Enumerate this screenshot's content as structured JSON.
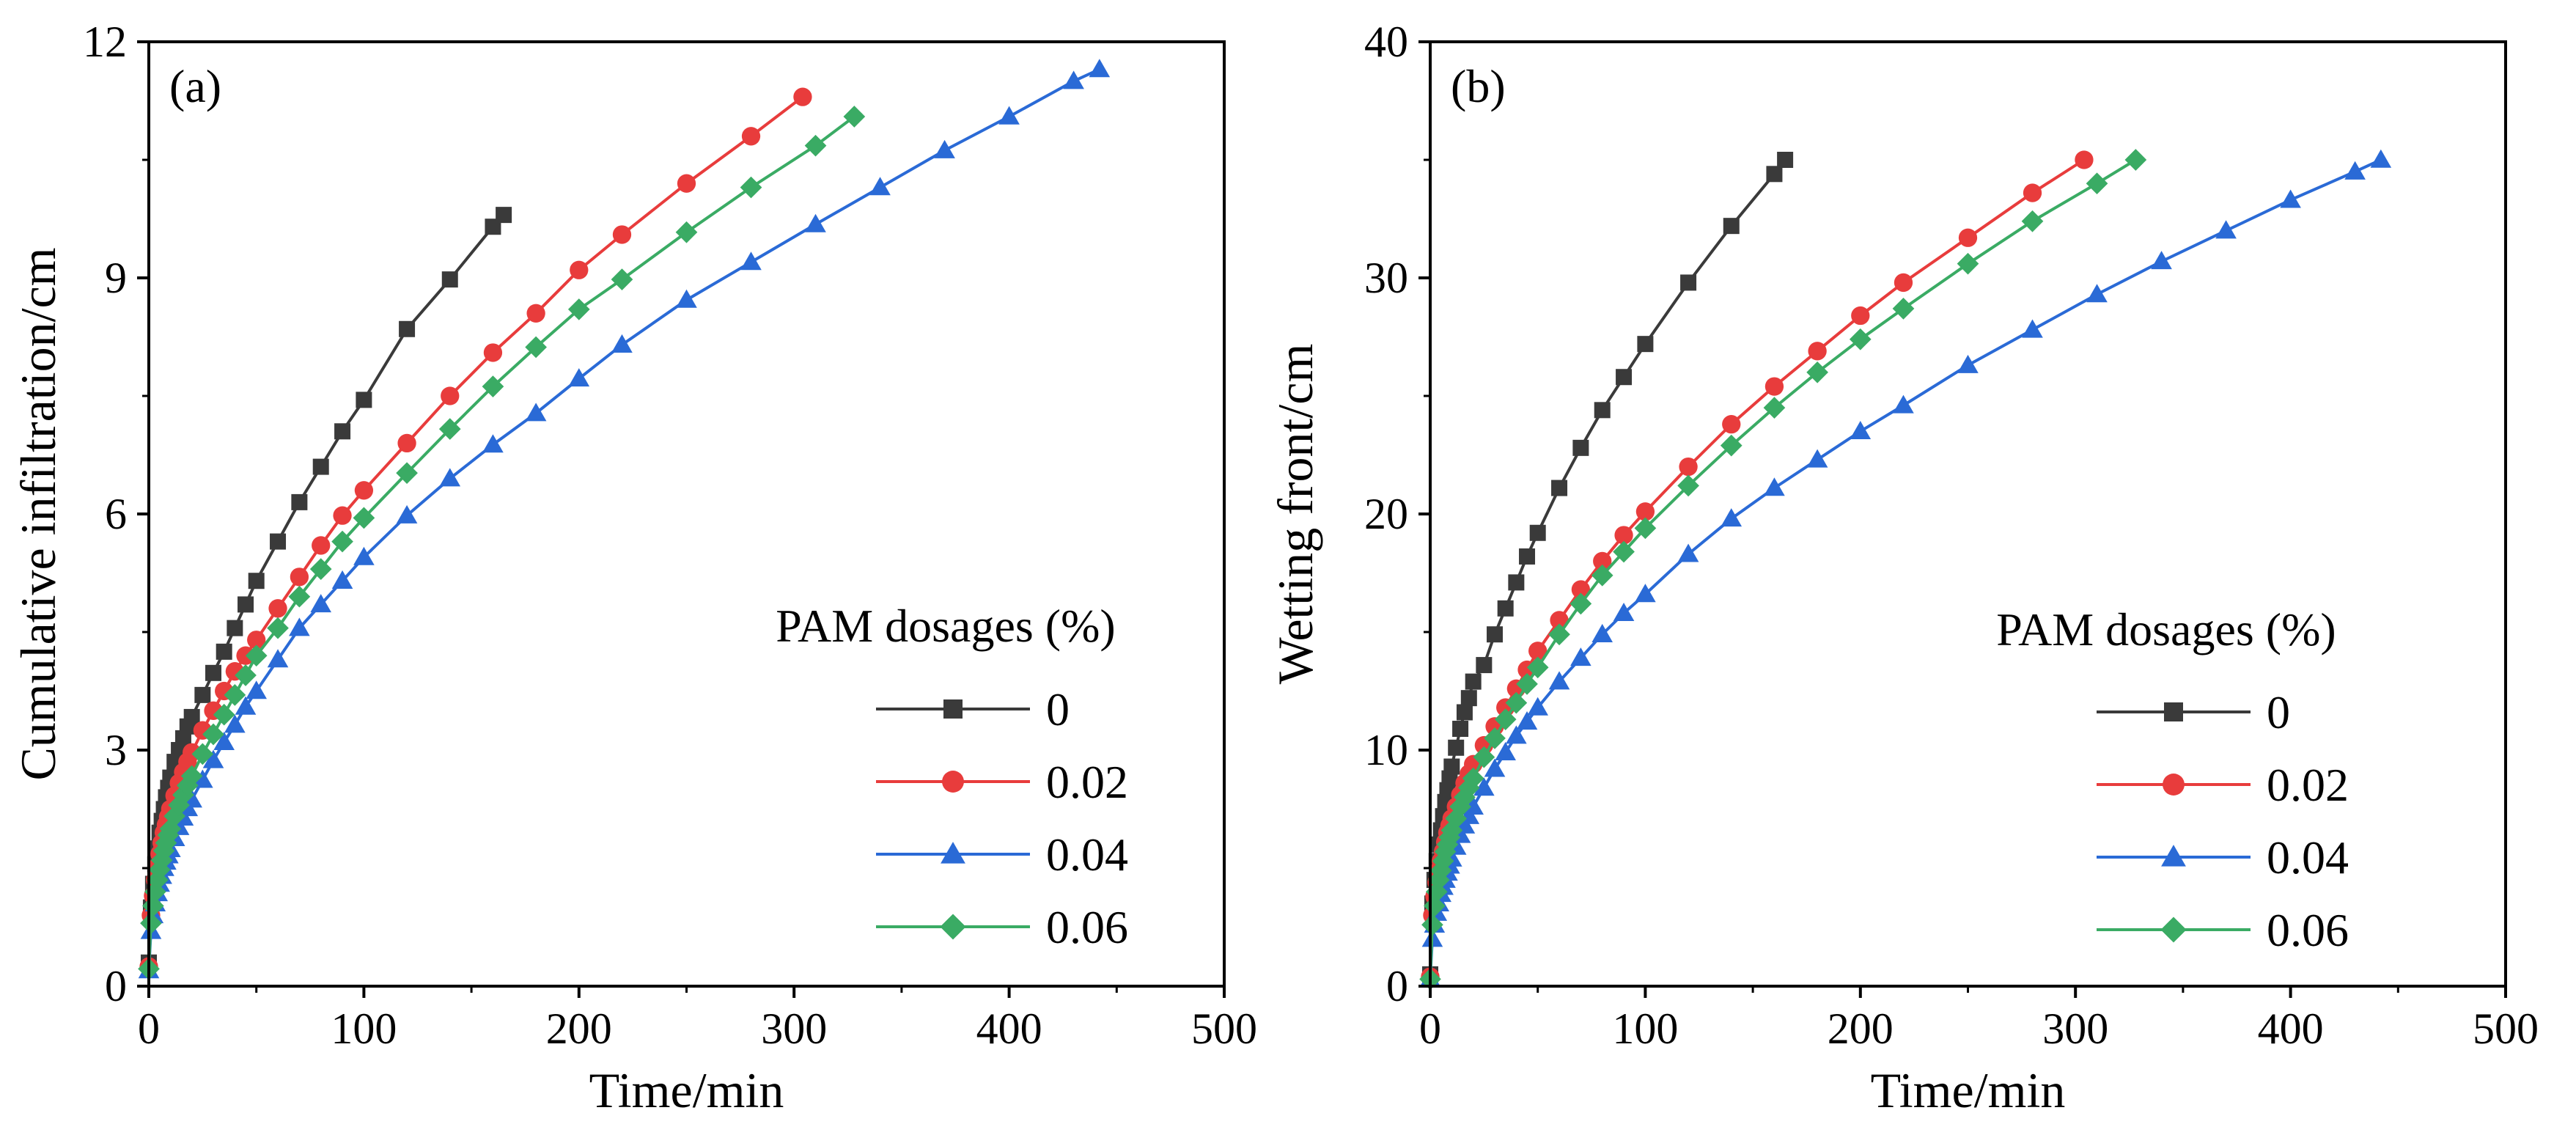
{
  "chart_data": [
    {
      "type": "line",
      "panel_label": "(a)",
      "xlabel": "Time/min",
      "ylabel": "Cumulative infiltration/cm",
      "xlim": [
        0,
        500
      ],
      "ylim": [
        0,
        12
      ],
      "xticks": [
        0,
        100,
        200,
        300,
        400,
        500
      ],
      "yticks": [
        0,
        3,
        6,
        9,
        12
      ],
      "legend_title": "PAM dosages (%)",
      "legend_position": "lower-right",
      "series": [
        {
          "name": "0",
          "color": "#3a3a3a",
          "marker": "square",
          "x": [
            0,
            1,
            2,
            3,
            4,
            5,
            6,
            7,
            8,
            9,
            10,
            12,
            14,
            16,
            18,
            20,
            25,
            30,
            35,
            40,
            45,
            50,
            60,
            70,
            80,
            90,
            100,
            120,
            140,
            160,
            165
          ],
          "y": [
            0.3,
            1.0,
            1.3,
            1.55,
            1.75,
            1.95,
            2.1,
            2.25,
            2.4,
            2.52,
            2.65,
            2.85,
            3.0,
            3.15,
            3.3,
            3.42,
            3.7,
            3.98,
            4.25,
            4.55,
            4.85,
            5.15,
            5.65,
            6.15,
            6.6,
            7.05,
            7.45,
            8.35,
            8.98,
            9.65,
            9.8
          ]
        },
        {
          "name": "0.02",
          "color": "#e83c3c",
          "marker": "circle",
          "x": [
            0,
            1,
            2,
            3,
            4,
            5,
            6,
            7,
            8,
            9,
            10,
            12,
            14,
            16,
            18,
            20,
            25,
            30,
            35,
            40,
            45,
            50,
            60,
            70,
            80,
            90,
            100,
            120,
            140,
            160,
            180,
            200,
            220,
            250,
            280,
            304
          ],
          "y": [
            0.25,
            0.9,
            1.15,
            1.35,
            1.52,
            1.68,
            1.82,
            1.95,
            2.05,
            2.15,
            2.25,
            2.42,
            2.58,
            2.72,
            2.85,
            2.97,
            3.25,
            3.5,
            3.75,
            4.0,
            4.2,
            4.4,
            4.8,
            5.2,
            5.6,
            5.98,
            6.3,
            6.9,
            7.5,
            8.05,
            8.55,
            9.1,
            9.55,
            10.2,
            10.8,
            11.3
          ]
        },
        {
          "name": "0.04",
          "color": "#2a6ad6",
          "marker": "triangle",
          "x": [
            0,
            1,
            2,
            3,
            4,
            5,
            6,
            7,
            8,
            9,
            10,
            12,
            14,
            16,
            18,
            20,
            25,
            30,
            35,
            40,
            45,
            50,
            60,
            70,
            80,
            90,
            100,
            120,
            140,
            160,
            180,
            200,
            220,
            250,
            280,
            310,
            340,
            370,
            400,
            430,
            442
          ],
          "y": [
            0.2,
            0.7,
            0.9,
            1.05,
            1.18,
            1.3,
            1.4,
            1.5,
            1.58,
            1.66,
            1.74,
            1.88,
            2.02,
            2.14,
            2.26,
            2.37,
            2.62,
            2.87,
            3.1,
            3.32,
            3.55,
            3.75,
            4.15,
            4.55,
            4.85,
            5.15,
            5.45,
            5.98,
            6.45,
            6.88,
            7.28,
            7.72,
            8.15,
            8.72,
            9.2,
            9.68,
            10.15,
            10.62,
            11.05,
            11.5,
            11.65
          ]
        },
        {
          "name": "0.06",
          "color": "#3aab64",
          "marker": "diamond",
          "x": [
            0,
            1,
            2,
            3,
            4,
            5,
            6,
            7,
            8,
            9,
            10,
            12,
            14,
            16,
            18,
            20,
            25,
            30,
            35,
            40,
            45,
            50,
            60,
            70,
            80,
            90,
            100,
            120,
            140,
            160,
            180,
            200,
            220,
            250,
            280,
            310,
            328
          ],
          "y": [
            0.22,
            0.8,
            1.02,
            1.2,
            1.35,
            1.48,
            1.6,
            1.72,
            1.82,
            1.92,
            2.0,
            2.16,
            2.3,
            2.43,
            2.55,
            2.67,
            2.95,
            3.2,
            3.45,
            3.7,
            3.95,
            4.2,
            4.55,
            4.95,
            5.3,
            5.65,
            5.95,
            6.52,
            7.08,
            7.62,
            8.12,
            8.6,
            8.98,
            9.58,
            10.15,
            10.68,
            11.05
          ]
        }
      ]
    },
    {
      "type": "line",
      "panel_label": "(b)",
      "xlabel": "Time/min",
      "ylabel": "Wetting front/cm",
      "xlim": [
        0,
        500
      ],
      "ylim": [
        0,
        40
      ],
      "xticks": [
        0,
        100,
        200,
        300,
        400,
        500
      ],
      "yticks": [
        0,
        10,
        20,
        30,
        40
      ],
      "legend_title": "PAM dosages (%)",
      "legend_position": "lower-right",
      "series": [
        {
          "name": "0",
          "color": "#3a3a3a",
          "marker": "square",
          "x": [
            0,
            1,
            2,
            3,
            4,
            5,
            6,
            7,
            8,
            9,
            10,
            12,
            14,
            16,
            18,
            20,
            25,
            30,
            35,
            40,
            45,
            50,
            60,
            70,
            80,
            90,
            100,
            120,
            140,
            160,
            165
          ],
          "y": [
            0.5,
            3.5,
            4.5,
            5.3,
            6.0,
            6.6,
            7.2,
            7.8,
            8.3,
            8.8,
            9.3,
            10.1,
            10.9,
            11.6,
            12.2,
            12.9,
            13.6,
            14.9,
            16.0,
            17.1,
            18.2,
            19.2,
            21.1,
            22.8,
            24.4,
            25.8,
            27.2,
            29.8,
            32.2,
            34.4,
            35.0
          ]
        },
        {
          "name": "0.02",
          "color": "#e83c3c",
          "marker": "circle",
          "x": [
            0,
            1,
            2,
            3,
            4,
            5,
            6,
            7,
            8,
            9,
            10,
            12,
            14,
            16,
            18,
            20,
            25,
            30,
            35,
            40,
            45,
            50,
            60,
            70,
            80,
            90,
            100,
            120,
            140,
            160,
            180,
            200,
            220,
            250,
            280,
            304
          ],
          "y": [
            0.4,
            3.0,
            3.8,
            4.4,
            4.9,
            5.3,
            5.7,
            6.1,
            6.5,
            6.8,
            7.1,
            7.6,
            8.1,
            8.6,
            9.0,
            9.4,
            10.2,
            11.0,
            11.8,
            12.6,
            13.4,
            14.2,
            15.5,
            16.8,
            18.0,
            19.1,
            20.1,
            22.0,
            23.8,
            25.4,
            26.9,
            28.4,
            29.8,
            31.7,
            33.6,
            35.0
          ]
        },
        {
          "name": "0.04",
          "color": "#2a6ad6",
          "marker": "triangle",
          "x": [
            0,
            1,
            2,
            3,
            4,
            5,
            6,
            7,
            8,
            9,
            10,
            12,
            14,
            16,
            18,
            20,
            25,
            30,
            35,
            40,
            45,
            50,
            60,
            70,
            80,
            90,
            100,
            120,
            140,
            160,
            180,
            200,
            220,
            250,
            280,
            310,
            340,
            370,
            400,
            430,
            442
          ],
          "y": [
            0.3,
            2.0,
            2.6,
            3.1,
            3.5,
            3.9,
            4.2,
            4.5,
            4.8,
            5.1,
            5.4,
            5.9,
            6.4,
            6.8,
            7.2,
            7.6,
            8.4,
            9.2,
            9.9,
            10.6,
            11.2,
            11.8,
            12.9,
            13.9,
            14.9,
            15.8,
            16.6,
            18.3,
            19.8,
            21.1,
            22.3,
            23.5,
            24.6,
            26.3,
            27.8,
            29.3,
            30.7,
            32.0,
            33.3,
            34.5,
            35.0
          ]
        },
        {
          "name": "0.06",
          "color": "#3aab64",
          "marker": "diamond",
          "x": [
            0,
            1,
            2,
            3,
            4,
            5,
            6,
            7,
            8,
            9,
            10,
            12,
            14,
            16,
            18,
            20,
            25,
            30,
            35,
            40,
            45,
            50,
            60,
            70,
            80,
            90,
            100,
            120,
            140,
            160,
            180,
            200,
            220,
            250,
            280,
            310,
            328
          ],
          "y": [
            0.3,
            2.6,
            3.4,
            4.0,
            4.5,
            4.9,
            5.3,
            5.7,
            6.0,
            6.3,
            6.6,
            7.1,
            7.6,
            8.0,
            8.4,
            8.8,
            9.7,
            10.5,
            11.3,
            12.0,
            12.8,
            13.5,
            14.9,
            16.2,
            17.4,
            18.4,
            19.4,
            21.2,
            22.9,
            24.5,
            26.0,
            27.4,
            28.7,
            30.6,
            32.4,
            34.0,
            35.0
          ]
        }
      ]
    }
  ]
}
